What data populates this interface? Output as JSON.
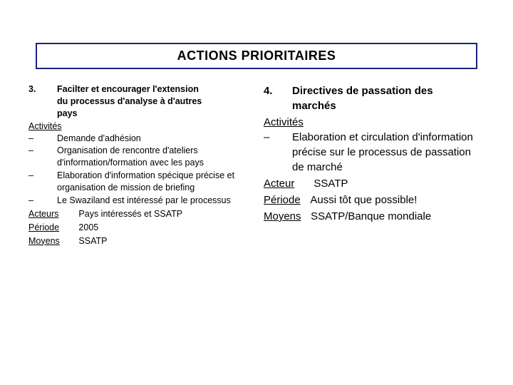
{
  "title": "ACTIONS PRIORITAIRES",
  "colors": {
    "border": "#1a237e",
    "text": "#000000",
    "background": "#ffffff"
  },
  "left": {
    "item_number": "3.",
    "item_title_line1": "Facilter et encourager l'extension",
    "item_title_line2": "du processus d'analyse à d'autres",
    "item_title_line3": "pays",
    "activities_label": "Activités",
    "bullets": [
      "Demande d'adhésion",
      "Organisation  de rencontre d'ateliers d'information/formation avec les pays",
      "Elaboration d'information spécique précise et organisation de mission de briefing",
      "Le Swaziland est intéressé par le processus"
    ],
    "actors_label": "Acteurs",
    "actors_value": "Pays intéressés et SSATP",
    "period_label": "Période",
    "period_value": "2005",
    "means_label": "Moyens",
    "means_value": "SSATP"
  },
  "right": {
    "item_number": "4.",
    "item_title_line1": "Directives de passation des",
    "item_title_line2": "marchés",
    "activities_label": "Activités",
    "bullets": [
      "Elaboration et circulation d'information précise sur le processus de passation de marché"
    ],
    "actor_label": "Acteur",
    "actor_value": "SSATP",
    "period_label": "Période",
    "period_value": "Aussi tôt que possible!",
    "means_label": "Moyens",
    "means_value": "SSATP/Banque mondiale"
  }
}
